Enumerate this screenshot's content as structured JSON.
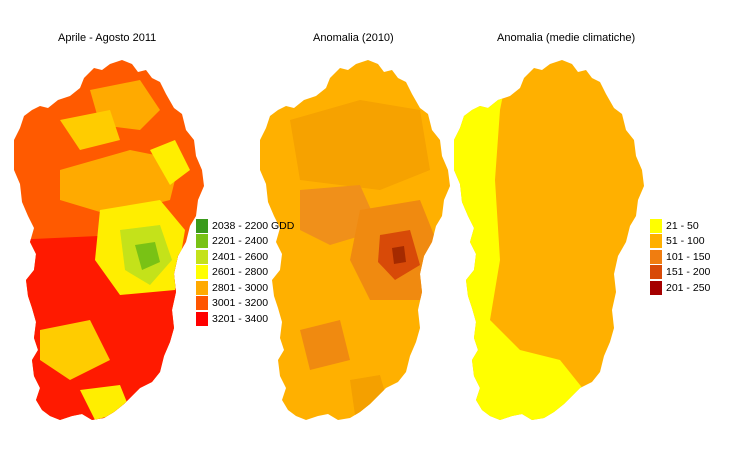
{
  "panels": [
    {
      "title": "Aprile - Agosto 2011"
    },
    {
      "title": "Anomalia (2010)"
    },
    {
      "title": "Anomalia (medie climatiche)"
    }
  ],
  "legend_gdd": {
    "items": [
      {
        "label": "2038 - 2200 GDD",
        "color": "#3a9a1c"
      },
      {
        "label": "2201 - 2400",
        "color": "#79c215"
      },
      {
        "label": "2401 - 2600",
        "color": "#c4e21a"
      },
      {
        "label": "2601 - 2800",
        "color": "#ffff00"
      },
      {
        "label": "2801 - 3000",
        "color": "#ffaa00"
      },
      {
        "label": "3001 - 3200",
        "color": "#ff5500"
      },
      {
        "label": "3201 - 3400",
        "color": "#ff0000"
      }
    ]
  },
  "legend_anomaly": {
    "items": [
      {
        "label": "21 - 50",
        "color": "#ffff00"
      },
      {
        "label": "51 - 100",
        "color": "#ffb000"
      },
      {
        "label": "101 - 150",
        "color": "#f07d10"
      },
      {
        "label": "151 - 200",
        "color": "#d84a08"
      },
      {
        "label": "201 - 250",
        "color": "#a50000"
      }
    ]
  }
}
